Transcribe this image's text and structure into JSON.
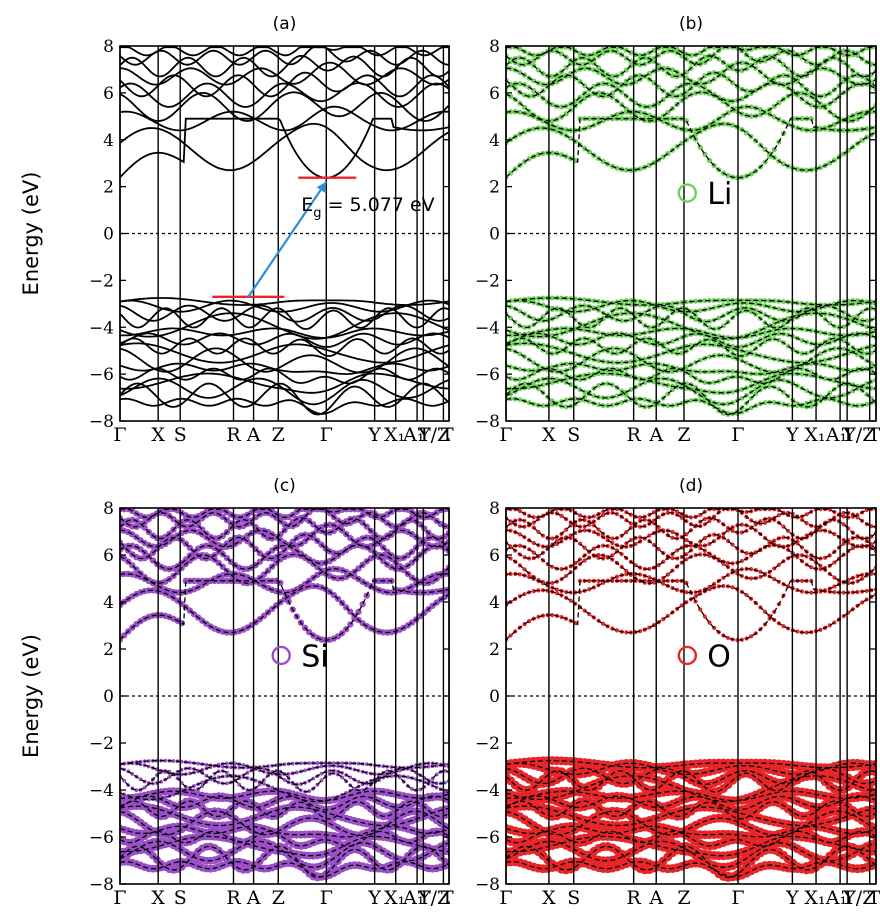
{
  "figure": {
    "ylabel": "Energy (eV)",
    "y_ticks": [
      8,
      6,
      4,
      2,
      0,
      -2,
      -4,
      -6,
      -8
    ],
    "ylim": [
      -8,
      8
    ],
    "k_path_labels": [
      "Γ",
      "X",
      "S",
      "R",
      "A",
      "Z",
      "Γ",
      "Y",
      "X₁",
      "A₁",
      "T",
      "Y/Z",
      "T"
    ],
    "fermi_level": 0
  },
  "chart_data": [
    {
      "type": "line",
      "title": "(a)",
      "projection": null,
      "annotation": {
        "text_main": "E",
        "text_sub": "g",
        "text_rest": " = 5.077 eV",
        "vbm": -2.7,
        "cbm": 2.38,
        "marker_color": "#e8262a",
        "arrow_color": "#2b8fd6"
      },
      "band_color": "#000000"
    },
    {
      "type": "line",
      "title": "(b)",
      "projection": {
        "element": "Li",
        "color": "#6fcf5a"
      },
      "band_color": "#000000"
    },
    {
      "type": "line",
      "title": "(c)",
      "projection": {
        "element": "Si",
        "color": "#9a4fc7"
      },
      "band_color": "#000000"
    },
    {
      "type": "line",
      "title": "(d)",
      "projection": {
        "element": "O",
        "color": "#e8262a"
      },
      "band_color": "#000000"
    }
  ]
}
